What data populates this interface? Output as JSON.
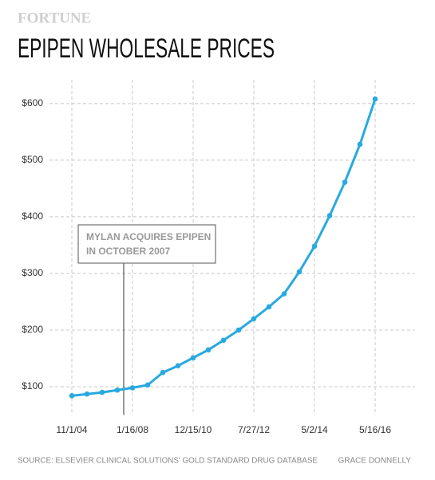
{
  "brand": "FORTUNE",
  "chart_data": {
    "type": "line",
    "title": "EPIPEN WHOLESALE PRICES",
    "categories": [
      "11/1/04",
      null,
      null,
      null,
      "1/16/08",
      null,
      null,
      null,
      "12/15/10",
      null,
      null,
      null,
      "7/27/12",
      null,
      null,
      null,
      "5/2/14",
      null,
      null,
      null,
      "5/16/16"
    ],
    "series": [
      {
        "color": "#29a9e0",
        "values": [
          84,
          87,
          90,
          94,
          98,
          103,
          125,
          137,
          151,
          165,
          182,
          200,
          220,
          241,
          264,
          303,
          348,
          402,
          461,
          528,
          608
        ]
      }
    ],
    "ylim": [
      50,
      642
    ],
    "yticks": [
      {
        "value": 100,
        "label": "$100"
      },
      {
        "value": 200,
        "label": "$200"
      },
      {
        "value": 300,
        "label": "$300"
      },
      {
        "value": 400,
        "label": "$400"
      },
      {
        "value": 500,
        "label": "$500"
      },
      {
        "value": 600,
        "label": "$600"
      }
    ],
    "grid": true,
    "annotation": [
      "MYLAN ACQUIRES EPIPEN",
      "IN OCTOBER 2007"
    ]
  },
  "footer": {
    "source": "SOURCE: ELSEVIER CLINICAL SOLUTIONS' GOLD STANDARD DRUG DATABASE",
    "credit": "GRACE DONNELLY"
  }
}
